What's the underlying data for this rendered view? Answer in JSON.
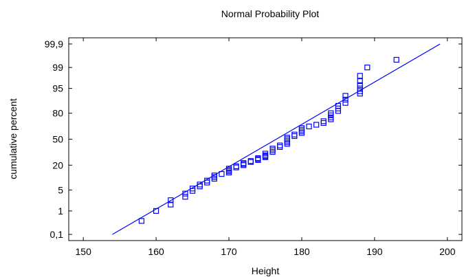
{
  "chart_data": {
    "type": "scatter",
    "title": "Normal Probability Plot",
    "xlabel": "Height",
    "ylabel": "cumulative percent",
    "x_ticks": [
      150,
      160,
      170,
      180,
      190,
      200
    ],
    "x_tick_labels": [
      "150",
      "160",
      "170",
      "180",
      "190",
      "200"
    ],
    "xlim": [
      148,
      202
    ],
    "y_scale": "normal-probability",
    "y_ticks": [
      0.1,
      1,
      5,
      20,
      50,
      80,
      95,
      99,
      99.9
    ],
    "y_tick_labels": [
      "0,1",
      "1",
      "5",
      "20",
      "50",
      "80",
      "95",
      "99",
      "99,9"
    ],
    "ylim": [
      0.05,
      99.95
    ],
    "grid": false,
    "series_color": "#0000ff",
    "fit_line": {
      "x": [
        154,
        199
      ],
      "y": [
        0.1,
        99.9
      ]
    },
    "points": [
      [
        158,
        0.4
      ],
      [
        160,
        1
      ],
      [
        162,
        1.7
      ],
      [
        162,
        2.4
      ],
      [
        164,
        3.1
      ],
      [
        164,
        3.9
      ],
      [
        165,
        4.7
      ],
      [
        165,
        5.5
      ],
      [
        166,
        6.3
      ],
      [
        166,
        7.1
      ],
      [
        167,
        8
      ],
      [
        167,
        9
      ],
      [
        168,
        10
      ],
      [
        168,
        11
      ],
      [
        168,
        12
      ],
      [
        169,
        13
      ],
      [
        170,
        14
      ],
      [
        170,
        15
      ],
      [
        170,
        16
      ],
      [
        170,
        17
      ],
      [
        171,
        18
      ],
      [
        171,
        19
      ],
      [
        172,
        20
      ],
      [
        172,
        21
      ],
      [
        172,
        22
      ],
      [
        173,
        23
      ],
      [
        173,
        24
      ],
      [
        174,
        25
      ],
      [
        174,
        26
      ],
      [
        174,
        27
      ],
      [
        175,
        28
      ],
      [
        175,
        29
      ],
      [
        175,
        30
      ],
      [
        175,
        32
      ],
      [
        176,
        34
      ],
      [
        176,
        36
      ],
      [
        176,
        38
      ],
      [
        177,
        40
      ],
      [
        177,
        42
      ],
      [
        178,
        44
      ],
      [
        178,
        46
      ],
      [
        178,
        48
      ],
      [
        178,
        50
      ],
      [
        178,
        52
      ],
      [
        179,
        54
      ],
      [
        179,
        56
      ],
      [
        180,
        58
      ],
      [
        180,
        60
      ],
      [
        180,
        62
      ],
      [
        180,
        64
      ],
      [
        181,
        66
      ],
      [
        182,
        68
      ],
      [
        183,
        70
      ],
      [
        183,
        72
      ],
      [
        184,
        74
      ],
      [
        184,
        76
      ],
      [
        184,
        78
      ],
      [
        184,
        80
      ],
      [
        185,
        82
      ],
      [
        185,
        84
      ],
      [
        185,
        86
      ],
      [
        186,
        88
      ],
      [
        186,
        90
      ],
      [
        186,
        92
      ],
      [
        188,
        93
      ],
      [
        188,
        94
      ],
      [
        188,
        95
      ],
      [
        188,
        96
      ],
      [
        188,
        97
      ],
      [
        188,
        98
      ],
      [
        189,
        99
      ],
      [
        193,
        99.5
      ]
    ]
  }
}
